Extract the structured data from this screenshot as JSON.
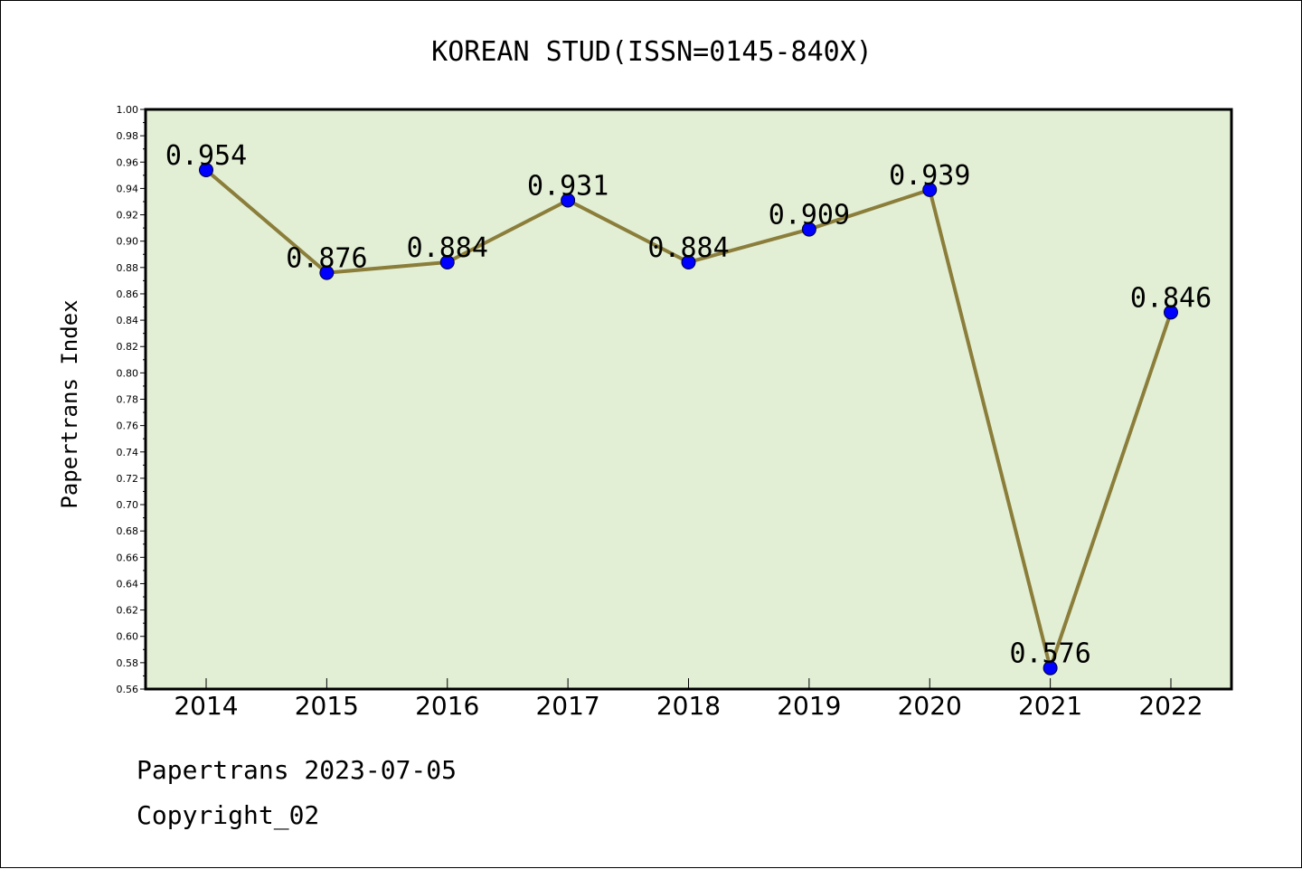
{
  "chart_data": {
    "type": "line",
    "title": "KOREAN STUD(ISSN=0145-840X)",
    "xlabel": "",
    "ylabel": "Papertrans Index",
    "categories": [
      "2014",
      "2015",
      "2016",
      "2017",
      "2018",
      "2019",
      "2020",
      "2021",
      "2022"
    ],
    "series": [
      {
        "values": [
          0.954,
          0.876,
          0.884,
          0.931,
          0.884,
          0.909,
          0.939,
          0.576,
          0.846
        ],
        "data_labels": [
          "0.954",
          "0.876",
          "0.884",
          "0.931",
          "0.884",
          "0.909",
          "0.939",
          "0.576",
          "0.846"
        ]
      }
    ],
    "ylim": [
      0.56,
      1.0
    ],
    "yticks": [
      "0.56",
      "0.58",
      "0.60",
      "0.62",
      "0.64",
      "0.66",
      "0.68",
      "0.70",
      "0.72",
      "0.74",
      "0.76",
      "0.78",
      "0.80",
      "0.82",
      "0.84",
      "0.86",
      "0.88",
      "0.90",
      "0.92",
      "0.94",
      "0.96",
      "0.98",
      "1.00"
    ],
    "grid": false,
    "colors": {
      "plot_background": "#e2efd5",
      "line": "#8b7d3a",
      "marker": "#0000ff"
    }
  },
  "footer": {
    "line1": "Papertrans 2023-07-05",
    "line2": "Copyright_02"
  }
}
